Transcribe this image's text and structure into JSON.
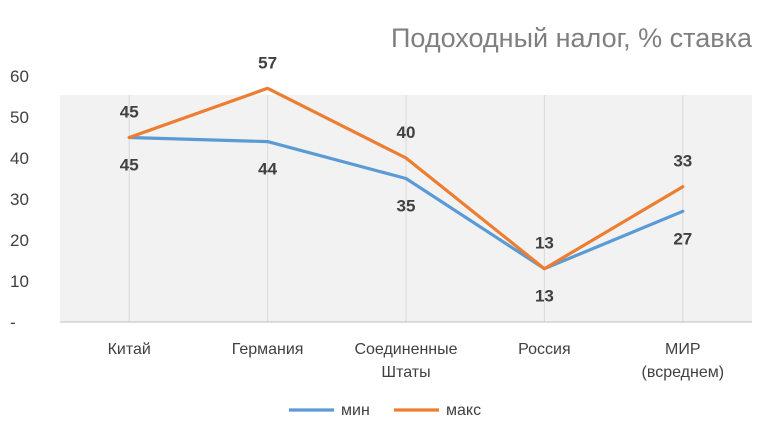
{
  "chart_data": {
    "type": "line",
    "title": "Подоходный налог, % ставка",
    "categories": [
      [
        "Китай"
      ],
      [
        "Германия"
      ],
      [
        "Соединенные",
        "Штаты"
      ],
      [
        "Россия"
      ],
      [
        "МИР",
        "(всреднем)"
      ]
    ],
    "series": [
      {
        "name": "мин",
        "values": [
          45,
          44,
          35,
          13,
          27
        ],
        "color": "#5b9bd5"
      },
      {
        "name": "макс",
        "values": [
          45,
          57,
          40,
          13,
          33
        ],
        "color": "#ed7d31"
      }
    ],
    "y_ticks": [
      "-",
      "10",
      "20",
      "30",
      "40",
      "50",
      "60"
    ],
    "ylim": [
      0,
      60
    ],
    "grid": "vertical",
    "legend_position": "bottom",
    "plot_background": "#f2f2f2"
  }
}
